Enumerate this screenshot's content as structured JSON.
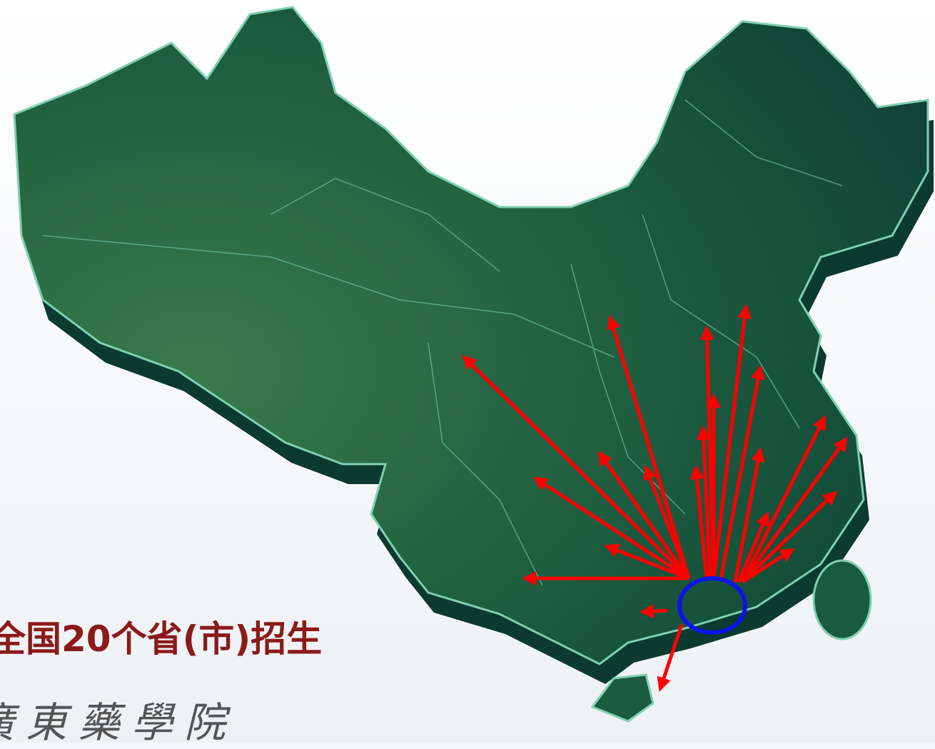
{
  "caption": "全国20个省(市)招生",
  "logo": "廣東藥學院"
}
